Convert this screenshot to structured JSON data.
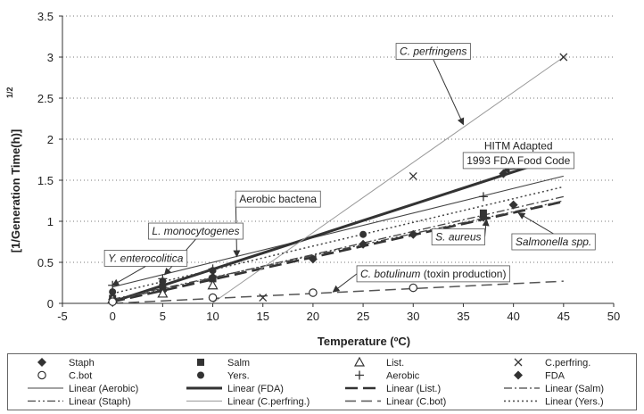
{
  "chart_data": {
    "type": "scatter",
    "xlabel": "Temperature (ºC)",
    "ylabel": "[1/Generation Time(h)]",
    "ylabel_sup": "1/2",
    "xlim": [
      -5,
      50
    ],
    "ylim": [
      0,
      3.5
    ],
    "x_ticks": [
      "-5",
      "0",
      "5",
      "10",
      "15",
      "20",
      "25",
      "30",
      "35",
      "40",
      "45",
      "50"
    ],
    "y_ticks": [
      "0",
      "0.5",
      "1",
      "1.5",
      "2",
      "2.5",
      "3",
      "3.5"
    ],
    "grid": "horizontal dotted",
    "series": [
      {
        "name": "Staph",
        "marker": "diamond",
        "x": [
          0,
          5,
          10,
          20,
          25,
          30,
          37,
          40
        ],
        "y": [
          0.05,
          0.15,
          0.32,
          0.54,
          0.72,
          0.84,
          1.05,
          1.2
        ]
      },
      {
        "name": "Salm",
        "marker": "square",
        "x": [
          0,
          5,
          10,
          37
        ],
        "y": [
          0.06,
          0.2,
          0.3,
          1.1
        ]
      },
      {
        "name": "List.",
        "marker": "triangle-open",
        "x": [
          0,
          5,
          10
        ],
        "y": [
          0.05,
          0.12,
          0.22
        ]
      },
      {
        "name": "C.perfring.",
        "marker": "x",
        "x": [
          15,
          30,
          45
        ],
        "y": [
          0.07,
          1.55,
          3.0
        ]
      },
      {
        "name": "C.bot",
        "marker": "circle-open",
        "x": [
          0,
          10,
          20,
          30
        ],
        "y": [
          0.02,
          0.07,
          0.13,
          0.19
        ]
      },
      {
        "name": "Yers.",
        "marker": "circle",
        "x": [
          0,
          5,
          10,
          25
        ],
        "y": [
          0.14,
          0.27,
          0.4,
          0.84
        ]
      },
      {
        "name": "Aerobic",
        "marker": "plus",
        "x": [
          0,
          5,
          10,
          37
        ],
        "y": [
          0.22,
          0.3,
          0.42,
          1.3
        ]
      },
      {
        "name": "FDA",
        "marker": "diamond",
        "x": [
          39
        ],
        "y": [
          1.58
        ]
      }
    ],
    "trendlines": [
      {
        "name": "Linear (Aerobic)",
        "style": "thin",
        "x": [
          0,
          45
        ],
        "y": [
          0.2,
          1.55
        ]
      },
      {
        "name": "Linear (FDA)",
        "style": "thick",
        "x": [
          0,
          45
        ],
        "y": [
          0.02,
          1.8
        ]
      },
      {
        "name": "Linear (List.)",
        "style": "longdash-thick",
        "x": [
          0,
          45
        ],
        "y": [
          0.02,
          1.24
        ]
      },
      {
        "name": "Linear (Salm)",
        "style": "dashdot",
        "x": [
          0,
          45
        ],
        "y": [
          0.03,
          1.3
        ]
      },
      {
        "name": "Linear (Staph)",
        "style": "dashdotdot",
        "x": [
          0,
          45
        ],
        "y": [
          0.05,
          1.25
        ]
      },
      {
        "name": "Linear (C.perfring.)",
        "style": "thin-gray",
        "x": [
          7,
          45
        ],
        "y": [
          -0.25,
          3.0
        ]
      },
      {
        "name": "Linear (C.bot)",
        "style": "longdash",
        "x": [
          0,
          45
        ],
        "y": [
          0.0,
          0.27
        ]
      },
      {
        "name": "Linear (Yers.)",
        "style": "dotted",
        "x": [
          0,
          45
        ],
        "y": [
          0.12,
          1.42
        ]
      }
    ],
    "annotations": [
      {
        "text": "C. perfringens",
        "italic": true,
        "boxed": true,
        "at": [
          32,
          3.07
        ],
        "arrow_to": [
          35,
          2.18
        ]
      },
      {
        "text": "HITM Adapted",
        "italic": false,
        "boxed": false,
        "at": [
          40.5,
          1.92
        ]
      },
      {
        "text": "1993 FDA Food Code",
        "italic": false,
        "boxed": true,
        "at": [
          40.5,
          1.74
        ],
        "arrow_to": [
          39,
          1.62
        ]
      },
      {
        "text": "Aerobic bactena",
        "italic": false,
        "boxed": true,
        "at": [
          16.5,
          1.27
        ],
        "arrow_to": [
          12.4,
          0.57
        ]
      },
      {
        "text": "L. monocytogenes",
        "italic": true,
        "boxed": true,
        "at": [
          8.3,
          0.88
        ],
        "arrow_to": [
          5.2,
          0.35
        ]
      },
      {
        "text": "Y. enterocolitica",
        "italic": true,
        "boxed": true,
        "at": [
          3.3,
          0.55
        ],
        "arrow_to": [
          0,
          0.22
        ]
      },
      {
        "text": "Salmonella spp.",
        "italic": true,
        "boxed": true,
        "at": [
          44,
          0.75
        ],
        "arrow_to": [
          40.5,
          1.1
        ]
      },
      {
        "text": "S. aureus",
        "italic": true,
        "boxed": true,
        "at": [
          34.5,
          0.81
        ],
        "arrow_to": [
          37.3,
          1.02
        ]
      },
      {
        "text": "C. botulinum (toxin production)",
        "italic": false,
        "italic_prefix": "C. botulinum",
        "boxed": true,
        "at": [
          32,
          0.36
        ],
        "arrow_to": [
          22,
          0.14
        ]
      }
    ]
  },
  "legend": {
    "rows": [
      [
        {
          "label": "Staph",
          "marker": "diamond"
        },
        {
          "label": "Salm",
          "marker": "square"
        },
        {
          "label": "List.",
          "marker": "triangle-open"
        },
        {
          "label": "C.perfring.",
          "marker": "x"
        }
      ],
      [
        {
          "label": "C.bot",
          "marker": "circle-open"
        },
        {
          "label": "Yers.",
          "marker": "circle"
        },
        {
          "label": "Aerobic",
          "marker": "plus"
        },
        {
          "label": "FDA",
          "marker": "diamond"
        }
      ],
      [
        {
          "label": "Linear (Aerobic)",
          "line": "thin"
        },
        {
          "label": "Linear (FDA)",
          "line": "thick"
        },
        {
          "label": "Linear (List.)",
          "line": "longdash-thick"
        },
        {
          "label": "Linear (Salm)",
          "line": "dashdot"
        }
      ],
      [
        {
          "label": "Linear (Staph)",
          "line": "dashdotdot"
        },
        {
          "label": "Linear (C.perfring.)",
          "line": "thin-gray"
        },
        {
          "label": "Linear (C.bot)",
          "line": "longdash"
        },
        {
          "label": "Linear (Yers.)",
          "line": "dotted"
        }
      ]
    ]
  }
}
